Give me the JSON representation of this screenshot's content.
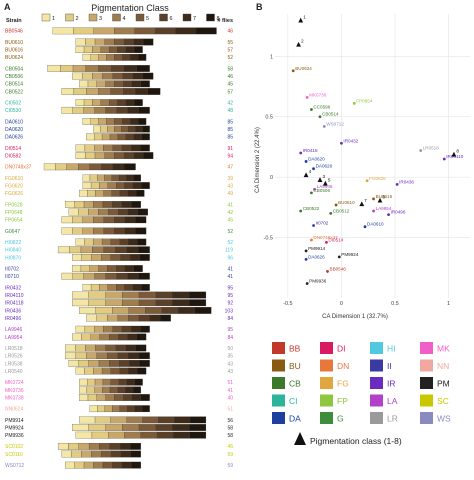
{
  "panel_labels": {
    "a": "A",
    "b": "B"
  },
  "chart_data": [
    {
      "type": "bar",
      "title": "Pigmentation Class",
      "row_header": "Strain",
      "count_header": "# flies",
      "classes": [
        "1",
        "2",
        "3",
        "4",
        "5",
        "6",
        "7",
        "8"
      ],
      "class_colors": [
        "#f4e7a6",
        "#e2cc82",
        "#c8a86a",
        "#9f7d4f",
        "#7a5a38",
        "#5a4028",
        "#3c2a1a",
        "#1f160e"
      ],
      "strains": [
        {
          "name": "BB0546",
          "count": 46,
          "color": "#c0392b",
          "group": 0,
          "start": 0.05,
          "end": 0.98
        },
        {
          "name": "BU0610",
          "count": 55,
          "color": "#8a5a10",
          "group": 1,
          "start": 0.18,
          "end": 0.62
        },
        {
          "name": "BU0616",
          "count": 57,
          "color": "#8a5a10",
          "group": 1,
          "start": 0.18,
          "end": 0.56
        },
        {
          "name": "BU0624",
          "count": 52,
          "color": "#8a5a10",
          "group": 1,
          "start": 0.22,
          "end": 0.58
        },
        {
          "name": "CB0504",
          "count": 58,
          "color": "#3a7a2a",
          "group": 2,
          "start": 0.02,
          "end": 0.6
        },
        {
          "name": "CB0506",
          "count": 46,
          "color": "#3a7a2a",
          "group": 2,
          "start": 0.16,
          "end": 0.62
        },
        {
          "name": "CB0514",
          "count": 45,
          "color": "#3a7a2a",
          "group": 2,
          "start": 0.2,
          "end": 0.6
        },
        {
          "name": "CB0522",
          "count": 57,
          "color": "#3a7a2a",
          "group": 2,
          "start": 0.1,
          "end": 0.66
        },
        {
          "name": "CI0502",
          "count": 42,
          "color": "#2ab59a",
          "group": 3,
          "start": 0.18,
          "end": 0.56
        },
        {
          "name": "CI0530",
          "count": 48,
          "color": "#2ab59a",
          "group": 3,
          "start": 0.1,
          "end": 0.6
        },
        {
          "name": "DA0610",
          "count": 85,
          "color": "#1f3f9e",
          "group": 4,
          "start": 0.22,
          "end": 0.58
        },
        {
          "name": "DA0620",
          "count": 85,
          "color": "#1f3f9e",
          "group": 4,
          "start": 0.28,
          "end": 0.6
        },
        {
          "name": "DA0626",
          "count": 85,
          "color": "#1f3f9e",
          "group": 4,
          "start": 0.24,
          "end": 0.6
        },
        {
          "name": "DI0514",
          "count": 91,
          "color": "#d81b60",
          "group": 5,
          "start": 0.18,
          "end": 0.6
        },
        {
          "name": "DI0582",
          "count": 94,
          "color": "#d81b60",
          "group": 5,
          "start": 0.18,
          "end": 0.62
        },
        {
          "name": "DN0748x37",
          "count": 47,
          "color": "#e8773a",
          "group": 6,
          "start": 0.0,
          "end": 0.52
        },
        {
          "name": "FG0610",
          "count": 39,
          "color": "#e0a640",
          "group": 7,
          "start": 0.22,
          "end": 0.55
        },
        {
          "name": "FG0620",
          "count": 43,
          "color": "#e0a640",
          "group": 7,
          "start": 0.22,
          "end": 0.6
        },
        {
          "name": "FG0626",
          "count": 49,
          "color": "#e0a640",
          "group": 7,
          "start": 0.2,
          "end": 0.57
        },
        {
          "name": "FP0628",
          "count": 41,
          "color": "#8dc63f",
          "group": 8,
          "start": 0.12,
          "end": 0.55
        },
        {
          "name": "FP0648",
          "count": 42,
          "color": "#8dc63f",
          "group": 8,
          "start": 0.14,
          "end": 0.59
        },
        {
          "name": "FP0654",
          "count": 45,
          "color": "#8dc63f",
          "group": 8,
          "start": 0.1,
          "end": 0.58
        },
        {
          "name": "G0647",
          "count": 52,
          "color": "#3c8d3c",
          "group": 9,
          "start": 0.1,
          "end": 0.58
        },
        {
          "name": "HI0822",
          "count": 52,
          "color": "#4fc8e0",
          "group": 10,
          "start": 0.18,
          "end": 0.58
        },
        {
          "name": "HI0840",
          "count": 119,
          "color": "#4fc8e0",
          "group": 10,
          "start": 0.08,
          "end": 0.6
        },
        {
          "name": "HI0870",
          "count": 96,
          "color": "#4fc8e0",
          "group": 10,
          "start": 0.16,
          "end": 0.6
        },
        {
          "name": "II0702",
          "count": 41,
          "color": "#3a3aa0",
          "group": 11,
          "start": 0.16,
          "end": 0.56
        },
        {
          "name": "II0710",
          "count": 41,
          "color": "#3a3aa0",
          "group": 11,
          "start": 0.1,
          "end": 0.6
        },
        {
          "name": "IR0432",
          "count": 95,
          "color": "#6a2cc0",
          "group": 12,
          "start": 0.22,
          "end": 0.6
        },
        {
          "name": "IR04110",
          "count": 95,
          "color": "#6a2cc0",
          "group": 12,
          "start": 0.16,
          "end": 0.92
        },
        {
          "name": "IR04118",
          "count": 92,
          "color": "#6a2cc0",
          "group": 12,
          "start": 0.16,
          "end": 0.92
        },
        {
          "name": "IR0436",
          "count": 103,
          "color": "#6a2cc0",
          "group": 12,
          "start": 0.2,
          "end": 0.95
        },
        {
          "name": "IR0496",
          "count": 84,
          "color": "#6a2cc0",
          "group": 12,
          "start": 0.24,
          "end": 0.72
        },
        {
          "name": "LA9946",
          "count": 95,
          "color": "#b340c8",
          "group": 13,
          "start": 0.18,
          "end": 0.6
        },
        {
          "name": "LA9954",
          "count": 84,
          "color": "#b340c8",
          "group": 13,
          "start": 0.16,
          "end": 0.58
        },
        {
          "name": "LR0518",
          "count": 50,
          "color": "#9a9a9a",
          "group": 14,
          "start": 0.12,
          "end": 0.58
        },
        {
          "name": "LR0526",
          "count": 35,
          "color": "#9a9a9a",
          "group": 14,
          "start": 0.12,
          "end": 0.6
        },
        {
          "name": "LR0538",
          "count": 43,
          "color": "#9a9a9a",
          "group": 14,
          "start": 0.14,
          "end": 0.6
        },
        {
          "name": "LR0540",
          "count": 43,
          "color": "#9a9a9a",
          "group": 14,
          "start": 0.18,
          "end": 0.58
        },
        {
          "name": "MK0724",
          "count": 51,
          "color": "#f05fc8",
          "group": 15,
          "start": 0.2,
          "end": 0.56
        },
        {
          "name": "MK0736",
          "count": 41,
          "color": "#f05fc8",
          "group": 15,
          "start": 0.2,
          "end": 0.55
        },
        {
          "name": "MK0738",
          "count": 40,
          "color": "#f05fc8",
          "group": 15,
          "start": 0.2,
          "end": 0.6
        },
        {
          "name": "NN0624",
          "count": 51,
          "color": "#f0a8a0",
          "group": 16,
          "start": 0.26,
          "end": 0.6
        },
        {
          "name": "PM9914",
          "count": 56,
          "color": "#222222",
          "group": 17,
          "start": 0.2,
          "end": 0.92
        },
        {
          "name": "PM9924",
          "count": 58,
          "color": "#222222",
          "group": 17,
          "start": 0.16,
          "end": 0.92
        },
        {
          "name": "PM9936",
          "count": 58,
          "color": "#222222",
          "group": 17,
          "start": 0.18,
          "end": 0.92
        },
        {
          "name": "SC0102",
          "count": 46,
          "color": "#c8c800",
          "group": 18,
          "start": 0.08,
          "end": 0.55
        },
        {
          "name": "SC0110",
          "count": 59,
          "color": "#c8c800",
          "group": 18,
          "start": 0.1,
          "end": 0.55
        },
        {
          "name": "WS0712",
          "count": 59,
          "color": "#8a8ac0",
          "group": 19,
          "start": 0.12,
          "end": 0.55
        }
      ]
    },
    {
      "type": "scatter",
      "xlabel": "CA Dimension 1 (32.7%)",
      "ylabel": "CA Dimension 2 (22.4%)",
      "xlim": [
        -0.62,
        1.2
      ],
      "ylim": [
        -1.0,
        1.35
      ],
      "xticks": [
        -0.5,
        0.0,
        0.5,
        1.0
      ],
      "yticks": [
        -0.5,
        0.0,
        0.5,
        1.0
      ],
      "grid": true,
      "points": [
        {
          "label": "BU0624",
          "x": -0.45,
          "y": 0.88,
          "color": "#8a5a10"
        },
        {
          "label": "MK0736",
          "x": -0.32,
          "y": 0.66,
          "color": "#f05fc8"
        },
        {
          "label": "FP0654",
          "x": 0.12,
          "y": 0.61,
          "color": "#8dc63f"
        },
        {
          "label": "CC0596",
          "x": -0.28,
          "y": 0.56,
          "color": "#3a7a2a"
        },
        {
          "label": "CB0514",
          "x": -0.2,
          "y": 0.5,
          "color": "#3a7a2a"
        },
        {
          "label": "WS0712",
          "x": -0.16,
          "y": 0.42,
          "color": "#8a8ac0"
        },
        {
          "label": "IR0432",
          "x": 0.0,
          "y": 0.28,
          "color": "#6a2cc0"
        },
        {
          "label": "LR0518",
          "x": 0.74,
          "y": 0.22,
          "color": "#9a9a9a"
        },
        {
          "label": "IR04110",
          "x": 0.96,
          "y": 0.15,
          "color": "#6a2cc0"
        },
        {
          "label": "IR0418",
          "x": -0.38,
          "y": 0.2,
          "color": "#6a2cc0"
        },
        {
          "label": "DA0620",
          "x": -0.33,
          "y": 0.13,
          "color": "#1f3f9e"
        },
        {
          "label": "DA0626",
          "x": -0.26,
          "y": 0.07,
          "color": "#1f3f9e"
        },
        {
          "label": "LA9946",
          "x": -0.25,
          "y": -0.1,
          "color": "#b340c8"
        },
        {
          "label": "CB0506",
          "x": -0.28,
          "y": -0.13,
          "color": "#3a7a2a"
        },
        {
          "label": "IR0436",
          "x": 0.52,
          "y": -0.06,
          "color": "#6a2cc0"
        },
        {
          "label": "FG0626",
          "x": 0.24,
          "y": -0.03,
          "color": "#e0a640"
        },
        {
          "label": "BU0616",
          "x": 0.3,
          "y": -0.18,
          "color": "#8a5a10"
        },
        {
          "label": "BU0610",
          "x": -0.05,
          "y": -0.23,
          "color": "#8a5a10"
        },
        {
          "label": "LA9954",
          "x": 0.3,
          "y": -0.28,
          "color": "#b340c8"
        },
        {
          "label": "IR0496",
          "x": 0.44,
          "y": -0.31,
          "color": "#6a2cc0"
        },
        {
          "label": "CB0522",
          "x": -0.38,
          "y": -0.28,
          "color": "#3a7a2a"
        },
        {
          "label": "CB0512",
          "x": -0.1,
          "y": -0.3,
          "color": "#3a7a2a"
        },
        {
          "label": "DA0610",
          "x": 0.22,
          "y": -0.41,
          "color": "#1f3f9e"
        },
        {
          "label": "II0702",
          "x": -0.26,
          "y": -0.4,
          "color": "#3a3aa0"
        },
        {
          "label": "DN0748x37",
          "x": -0.28,
          "y": -0.52,
          "color": "#e8773a"
        },
        {
          "label": "DI0514",
          "x": -0.14,
          "y": -0.54,
          "color": "#d81b60"
        },
        {
          "label": "PM9914",
          "x": -0.33,
          "y": -0.61,
          "color": "#222222"
        },
        {
          "label": "PM9924",
          "x": -0.02,
          "y": -0.66,
          "color": "#222222"
        },
        {
          "label": "DA0626",
          "x": -0.33,
          "y": -0.68,
          "color": "#1f3f9e"
        },
        {
          "label": "BB0546",
          "x": -0.13,
          "y": -0.78,
          "color": "#c0392b"
        },
        {
          "label": "PM9936",
          "x": -0.32,
          "y": -0.88,
          "color": "#222222"
        }
      ],
      "class_markers": [
        {
          "label": "1",
          "x": -0.38,
          "y": 1.3
        },
        {
          "label": "2",
          "x": -0.4,
          "y": 1.1
        },
        {
          "label": "3",
          "x": -0.2,
          "y": -0.02
        },
        {
          "label": "4",
          "x": -0.33,
          "y": 0.02
        },
        {
          "label": "5",
          "x": -0.15,
          "y": -0.05
        },
        {
          "label": "6",
          "x": 0.36,
          "y": -0.19
        },
        {
          "label": "7",
          "x": 0.19,
          "y": -0.22
        },
        {
          "label": "8",
          "x": 1.05,
          "y": 0.19
        }
      ],
      "legend": {
        "placement": "bottom",
        "groups": [
          {
            "code": "BB",
            "color": "#c0392b"
          },
          {
            "code": "DI",
            "color": "#d81b60"
          },
          {
            "code": "HI",
            "color": "#4fc8e0"
          },
          {
            "code": "MK",
            "color": "#f05fc8"
          },
          {
            "code": "BU",
            "color": "#8a5a10"
          },
          {
            "code": "DN",
            "color": "#e8773a"
          },
          {
            "code": "II",
            "color": "#3a3aa0"
          },
          {
            "code": "NN",
            "color": "#f0a8a0"
          },
          {
            "code": "CB",
            "color": "#3a7a2a"
          },
          {
            "code": "FG",
            "color": "#e0a640"
          },
          {
            "code": "IR",
            "color": "#6a2cc0"
          },
          {
            "code": "PM",
            "color": "#222222"
          },
          {
            "code": "CI",
            "color": "#2ab59a"
          },
          {
            "code": "FP",
            "color": "#8dc63f"
          },
          {
            "code": "LA",
            "color": "#b340c8"
          },
          {
            "code": "SC",
            "color": "#c8c800"
          },
          {
            "code": "DA",
            "color": "#1f3f9e"
          },
          {
            "code": "G",
            "color": "#3c8d3c"
          },
          {
            "code": "LR",
            "color": "#9a9a9a"
          },
          {
            "code": "WS",
            "color": "#8a8ac0"
          }
        ],
        "marker_label": "Pigmentation class (1-8)"
      }
    }
  ]
}
